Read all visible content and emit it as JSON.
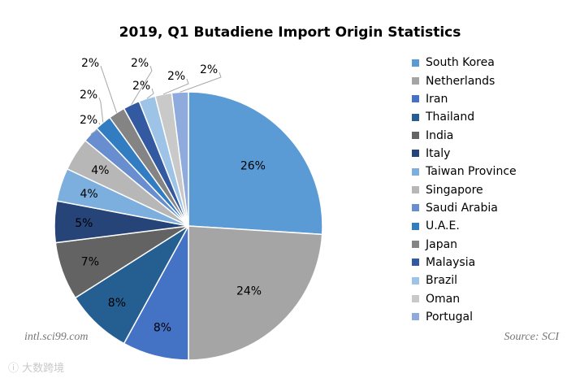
{
  "chart_data": {
    "type": "pie",
    "title": "2019, Q1 Butadiene Import Origin Statistics",
    "slices": [
      {
        "label": "South Korea",
        "value": 26,
        "display": "26%",
        "color": "#5B9BD5"
      },
      {
        "label": "Netherlands",
        "value": 24,
        "display": "24%",
        "color": "#A5A5A5"
      },
      {
        "label": "Iran",
        "value": 8,
        "display": "8%",
        "color": "#4472C4"
      },
      {
        "label": "Thailand",
        "value": 8,
        "display": "8%",
        "color": "#255E91"
      },
      {
        "label": "India",
        "value": 7,
        "display": "7%",
        "color": "#636363"
      },
      {
        "label": "Italy",
        "value": 5,
        "display": "5%",
        "color": "#264478"
      },
      {
        "label": "Taiwan Province",
        "value": 4,
        "display": "4%",
        "color": "#7CAFDD"
      },
      {
        "label": "Singapore",
        "value": 4,
        "display": "4%",
        "color": "#B7B7B7"
      },
      {
        "label": "Saudi Arabia",
        "value": 2,
        "display": "2%",
        "color": "#698ED0"
      },
      {
        "label": "U.A.E.",
        "value": 2,
        "display": "2%",
        "color": "#327DC2"
      },
      {
        "label": "Japan",
        "value": 2,
        "display": "2%",
        "color": "#848484"
      },
      {
        "label": "Malaysia",
        "value": 2,
        "display": "2%",
        "color": "#335AA1"
      },
      {
        "label": "Brazil",
        "value": 2,
        "display": "2%",
        "color": "#9DC3E6"
      },
      {
        "label": "Oman",
        "value": 2,
        "display": "2%",
        "color": "#C9C9C9"
      },
      {
        "label": "Portugal",
        "value": 2,
        "display": "2%",
        "color": "#8FAADC"
      }
    ],
    "legend_position": "right"
  },
  "watermark_left": "intl.sci99.com",
  "source_note": "Source: SCI",
  "corner_watermark": "大数跨境"
}
